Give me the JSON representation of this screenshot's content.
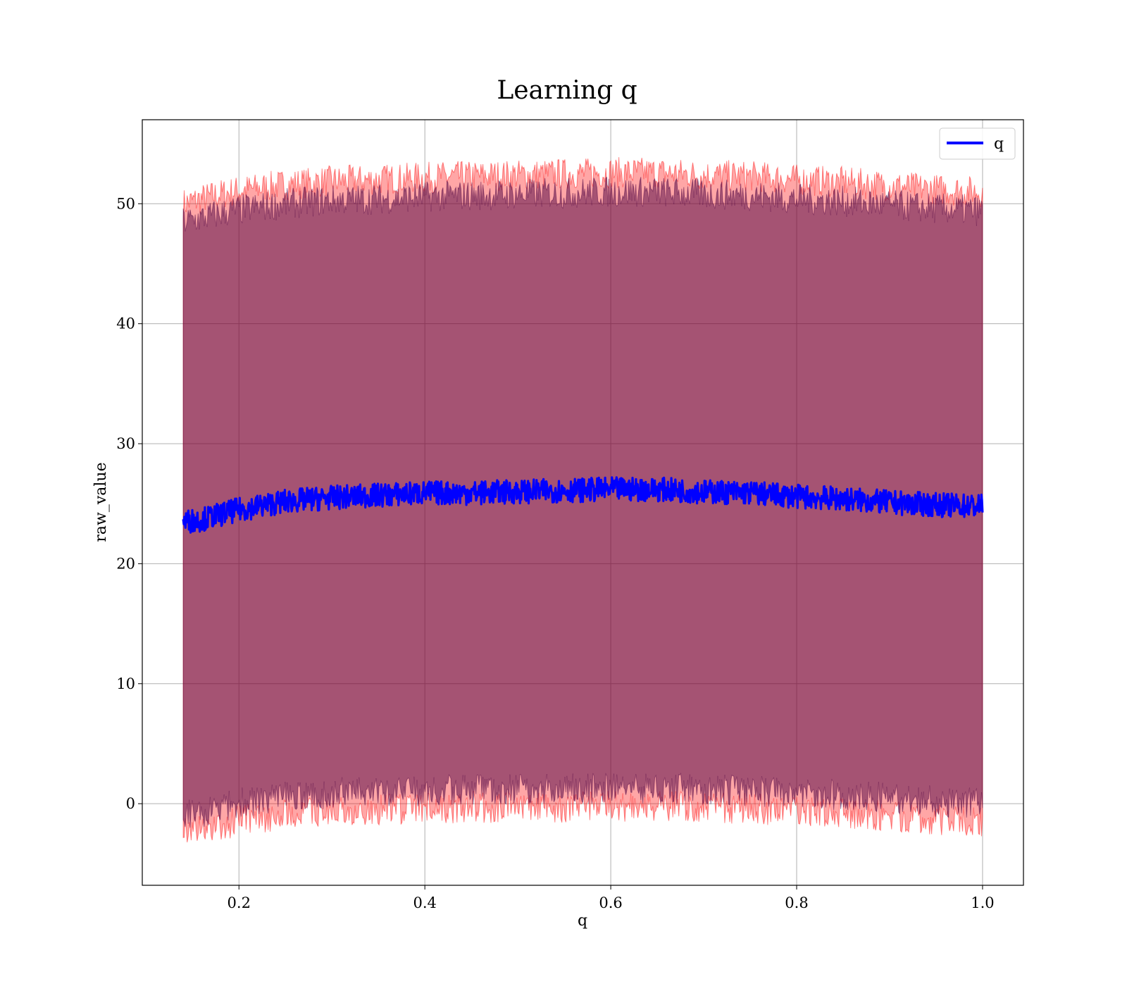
{
  "chart_data": {
    "type": "line",
    "title": "Learning q",
    "xlabel": "q",
    "ylabel": "raw_value",
    "xlim": [
      0.096,
      1.044
    ],
    "ylim": [
      -6.8,
      57.0
    ],
    "x_ticks": [
      0.2,
      0.4,
      0.6,
      0.8,
      1.0
    ],
    "x_tick_labels": [
      "0.2",
      "0.4",
      "0.6",
      "0.8",
      "1.0"
    ],
    "y_ticks": [
      0,
      10,
      20,
      30,
      40,
      50
    ],
    "y_tick_labels": [
      "0",
      "10",
      "20",
      "30",
      "40",
      "50"
    ],
    "grid": true,
    "legend_position": "top-right",
    "series": [
      {
        "name": "q",
        "color": "#0000ff",
        "x": [
          0.14,
          0.16,
          0.18,
          0.2,
          0.25,
          0.3,
          0.35,
          0.4,
          0.45,
          0.5,
          0.55,
          0.6,
          0.65,
          0.7,
          0.75,
          0.8,
          0.85,
          0.9,
          0.95,
          1.0
        ],
        "y": [
          23.5,
          23.7,
          24.1,
          24.5,
          25.2,
          25.5,
          25.7,
          25.9,
          25.9,
          26.0,
          26.1,
          26.2,
          26.2,
          26.0,
          25.9,
          25.6,
          25.4,
          25.1,
          24.9,
          24.8
        ],
        "noise_amplitude": 1.0
      }
    ],
    "bands": [
      {
        "kind": "range",
        "color": "#ff0000",
        "opacity": 0.35,
        "x": [
          0.14,
          0.16,
          0.18,
          0.2,
          0.25,
          0.3,
          0.35,
          0.4,
          0.45,
          0.5,
          0.55,
          0.6,
          0.65,
          0.7,
          0.75,
          0.8,
          0.85,
          0.9,
          0.95,
          1.0
        ],
        "upper": [
          50.0,
          50.4,
          50.8,
          51.1,
          51.6,
          51.9,
          52.0,
          52.2,
          52.3,
          52.4,
          52.5,
          52.6,
          52.6,
          52.4,
          52.3,
          52.0,
          51.8,
          51.5,
          51.2,
          51.0
        ],
        "lower": [
          -2.5,
          -2.2,
          -1.8,
          -1.4,
          -0.9,
          -0.6,
          -0.5,
          -0.4,
          -0.3,
          -0.3,
          -0.3,
          -0.2,
          -0.2,
          -0.3,
          -0.4,
          -0.6,
          -0.8,
          -1.0,
          -1.3,
          -1.5
        ]
      },
      {
        "kind": "range",
        "color": "#4b0040",
        "opacity": 0.5,
        "x": [
          0.14,
          0.16,
          0.18,
          0.2,
          0.25,
          0.3,
          0.35,
          0.4,
          0.45,
          0.5,
          0.55,
          0.6,
          0.65,
          0.7,
          0.75,
          0.8,
          0.85,
          0.9,
          0.95,
          1.0
        ],
        "upper": [
          48.5,
          48.8,
          49.2,
          49.5,
          50.0,
          50.3,
          50.4,
          50.6,
          50.7,
          50.8,
          50.9,
          51.0,
          51.0,
          50.8,
          50.7,
          50.4,
          50.2,
          49.9,
          49.6,
          49.4
        ],
        "lower": [
          -1.0,
          -0.7,
          -0.3,
          0.1,
          0.6,
          0.9,
          1.0,
          1.1,
          1.2,
          1.2,
          1.2,
          1.3,
          1.3,
          1.2,
          1.1,
          0.9,
          0.7,
          0.5,
          0.2,
          0.0
        ]
      }
    ]
  }
}
